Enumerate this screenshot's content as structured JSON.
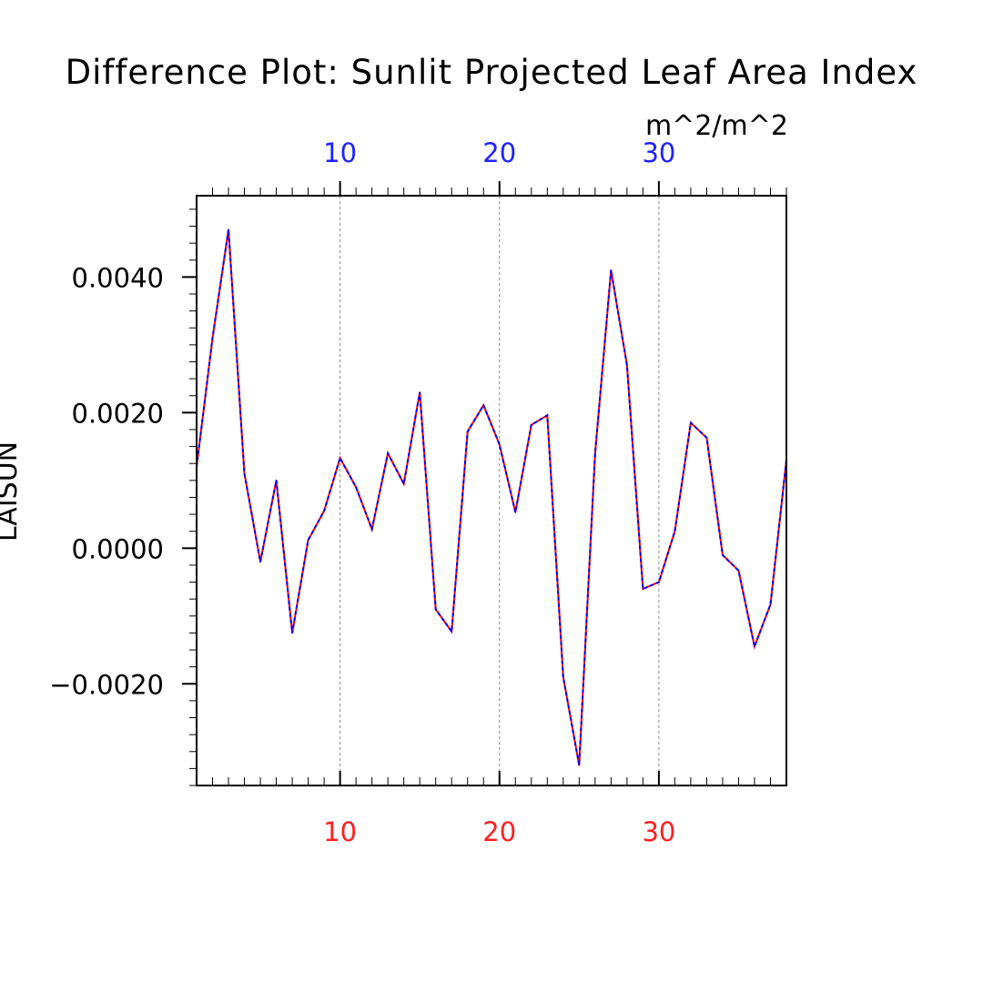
{
  "chart_data": {
    "type": "line",
    "title": "Difference Plot: Sunlit Projected Leaf Area Index",
    "units": "m^2/m^2",
    "ylabel": "LAISUN",
    "xlabel": "",
    "xlim": [
      1,
      38
    ],
    "ylim": [
      -0.0035,
      0.0052
    ],
    "grid": "vertical dashed lines at x ticks",
    "x_tick_values": [
      10,
      20,
      30
    ],
    "x_tick_labels": [
      "10",
      "20",
      "30"
    ],
    "y_tick_values": [
      0.004,
      0.002,
      0.0,
      -0.002
    ],
    "y_tick_labels": [
      "0.0040",
      "0.0020",
      "0.0000",
      "−0.0020"
    ],
    "colors": {
      "top_axis_labels": "#2020ff",
      "bottom_axis_labels": "#ff2020",
      "series_a": "#ff0000",
      "series_b": "#0000ff"
    },
    "x": [
      1,
      2,
      3,
      4,
      5,
      6,
      7,
      8,
      9,
      10,
      11,
      12,
      13,
      14,
      15,
      16,
      17,
      18,
      19,
      20,
      21,
      22,
      23,
      24,
      25,
      26,
      27,
      28,
      29,
      30,
      31,
      32,
      33,
      34,
      35,
      36,
      37,
      38
    ],
    "series": [
      {
        "values": [
          0.0012,
          0.0031,
          0.0047,
          0.0011,
          -0.0002,
          0.001,
          -0.00125,
          0.00012,
          0.00055,
          0.00133,
          0.0009,
          0.00028,
          0.0014,
          0.00095,
          0.0023,
          -0.0009,
          -0.00123,
          0.00172,
          0.00211,
          0.00153,
          0.00053,
          0.00182,
          0.00196,
          -0.0019,
          -0.0032,
          0.0014,
          0.0041,
          0.0027,
          -0.0006,
          -0.0005,
          0.00025,
          0.00185,
          0.00163,
          -0.0001,
          -0.00033,
          -0.00145,
          -0.00083,
          0.0013
        ]
      },
      {
        "values": [
          0.0012,
          0.0031,
          0.0047,
          0.0011,
          -0.0002,
          0.001,
          -0.00125,
          0.00012,
          0.00055,
          0.00133,
          0.0009,
          0.00028,
          0.0014,
          0.00095,
          0.0023,
          -0.0009,
          -0.00123,
          0.00172,
          0.00211,
          0.00153,
          0.00053,
          0.00182,
          0.00196,
          -0.0019,
          -0.0032,
          0.0014,
          0.0041,
          0.0027,
          -0.0006,
          -0.0005,
          0.00025,
          0.00185,
          0.00163,
          -0.0001,
          -0.00033,
          -0.00145,
          -0.00083,
          0.0013
        ]
      }
    ]
  }
}
